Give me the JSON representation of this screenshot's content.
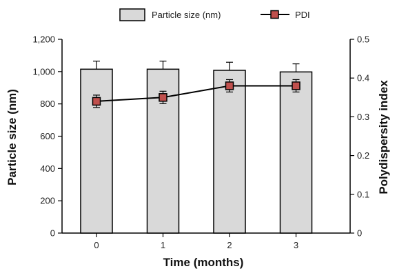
{
  "chart_data": {
    "type": "bar",
    "categories": [
      "0",
      "1",
      "2",
      "3"
    ],
    "xlabel": "Time (months)",
    "ylabel": "Particle size (nm)",
    "y2label": "Polydispersity index",
    "ylim": [
      0,
      1200
    ],
    "y2lim": [
      0,
      0.5
    ],
    "y_ticks": [
      "0",
      "200",
      "400",
      "600",
      "800",
      "1,000",
      "1,200"
    ],
    "y2_ticks": [
      "0",
      "0.1",
      "0.2",
      "0.3",
      "0.4",
      "0.5"
    ],
    "legend_position": "top-center",
    "grid": false,
    "series": [
      {
        "name": "Particle size (nm)",
        "kind": "bar",
        "axis": "left",
        "values": [
          1015,
          1015,
          1008,
          998
        ],
        "errors": [
          50,
          50,
          50,
          50
        ],
        "color": "#d9d9d9"
      },
      {
        "name": "PDI",
        "kind": "line",
        "axis": "right",
        "values": [
          0.34,
          0.35,
          0.38,
          0.38
        ],
        "errors": [
          0.016,
          0.016,
          0.016,
          0.016
        ],
        "color": "#c0504d"
      }
    ]
  }
}
